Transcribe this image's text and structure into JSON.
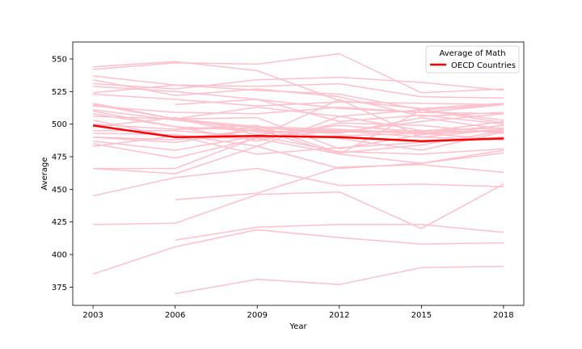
{
  "chart_data": {
    "type": "line",
    "title": "",
    "xlabel": "Year",
    "ylabel": "Average",
    "x": [
      2003,
      2006,
      2009,
      2012,
      2015,
      2018
    ],
    "xticks": [
      "2003",
      "2006",
      "2009",
      "2012",
      "2015",
      "2018"
    ],
    "yticks": [
      375,
      400,
      425,
      450,
      475,
      500,
      525,
      550
    ],
    "ylim": [
      361,
      563
    ],
    "grid": false,
    "legend": {
      "title": "Average of Math",
      "placement": "top-right",
      "entries": [
        "OECD Countries"
      ]
    },
    "colors": {
      "countries": "#ffc0cb",
      "oecd": "#ff0000"
    },
    "series": [
      {
        "name": "OECD Countries",
        "highlight": true,
        "values": [
          499,
          490,
          491,
          490,
          487,
          489
        ]
      },
      {
        "values": [
          544,
          548,
          541,
          518,
          512,
          516
        ]
      },
      {
        "values": [
          542,
          547,
          546,
          554,
          524,
          527
        ]
      },
      {
        "values": [
          537,
          530,
          526,
          523,
          511,
          515
        ]
      },
      {
        "values": [
          534,
          522,
          527,
          521,
          506,
          509
        ]
      },
      {
        "values": [
          531,
          527,
          534,
          536,
          532,
          526
        ]
      },
      {
        "values": [
          529,
          525,
          519,
          502,
          507,
          500
        ]
      },
      {
        "values": [
          524,
          530,
          529,
          531,
          521,
          520
        ]
      },
      {
        "values": [
          523,
          519,
          514,
          517,
          516,
          515
        ]
      },
      {
        "values": [
          516,
          504,
          513,
          506,
          511,
          501
        ]
      },
      {
        "values": [
          515,
          504,
          505,
          481,
          492,
          496
        ]
      },
      {
        "values": [
          514,
          509,
          508,
          513,
          509,
          508
        ]
      },
      {
        "values": [
          511,
          503,
          497,
          494,
          495,
          497
        ]
      },
      {
        "values": [
          510,
          498,
          495,
          493,
          505,
          496
        ]
      },
      {
        "values": [
          508,
          498,
          487,
          501,
          499,
          493
        ]
      },
      {
        "values": [
          506,
          504,
          492,
          499,
          494,
          502
        ]
      },
      {
        "values": [
          503,
          490,
          489,
          495,
          493,
          488
        ]
      },
      {
        "values": [
          500,
          496,
          499,
          478,
          484,
          495
        ]
      },
      {
        "values": [
          498,
          505,
          494,
          494,
          502,
          508
        ]
      },
      {
        "values": [
          495,
          495,
          490,
          491,
          493,
          499
        ]
      },
      {
        "values": [
          493,
          492,
          483,
          506,
          495,
          494
        ]
      },
      {
        "values": [
          490,
          486,
          496,
          489,
          480,
          494
        ]
      },
      {
        "values": [
          490,
          488,
          496,
          477,
          511,
          503
        ]
      },
      {
        "values": [
          487,
          480,
          491,
          479,
          477,
          481
        ]
      },
      {
        "values": [
          485,
          474,
          489,
          477,
          470,
          480
        ]
      },
      {
        "values": [
          483,
          491,
          477,
          482,
          486,
          490
        ]
      },
      {
        "values": [
          466,
          466,
          490,
          519,
          490,
          496
        ]
      },
      {
        "values": [
          466,
          462,
          483,
          466,
          470,
          478
        ]
      },
      {
        "values": [
          445,
          459,
          466,
          453,
          454,
          452
        ]
      },
      {
        "values": [
          423,
          424,
          446,
          448,
          420,
          454
        ]
      },
      {
        "values": [
          385,
          406,
          419,
          413,
          408,
          409
        ]
      },
      {
        "values": [
          null,
          515,
          519,
          512,
          509,
          515
        ]
      },
      {
        "values": [
          null,
          504,
          498,
          496,
          493,
          495
        ]
      },
      {
        "values": [
          null,
          496,
          497,
          495,
          490,
          488
        ]
      },
      {
        "values": [
          null,
          442,
          447,
          467,
          469,
          463
        ]
      },
      {
        "values": [
          null,
          411,
          421,
          423,
          423,
          417
        ]
      },
      {
        "values": [
          null,
          370,
          381,
          377,
          390,
          391
        ]
      }
    ]
  }
}
